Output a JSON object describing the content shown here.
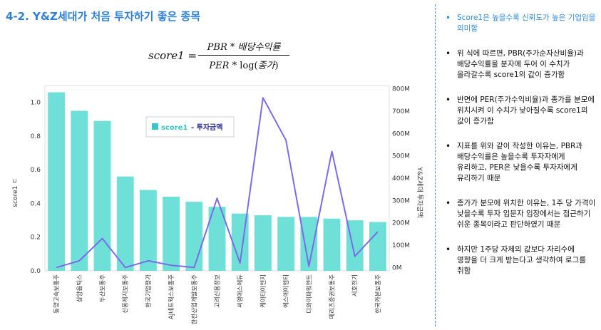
{
  "title": "4-2. Y&Z세대가 처음 투자하기 좋은 종목",
  "formula": {
    "lhs": "score1 =",
    "numerator": "PBR * 배당수익률",
    "denominator_prefix": "PER * ",
    "denominator_log": "log(",
    "denominator_arg": "종가",
    "denominator_suffix": ")"
  },
  "notes": [
    "Score1은 높을수록 신뢰도가 높은 기업임을 의미함",
    "위 식에 따르면, PBR(주가순자산비율)과 배당수익률을 분자에 두어 이 수치가 올라갈수록 score1의 값이 증가함",
    "반면에 PER(주가수익비율)과 종가를 분모에 위치시켜 이 수치가 낮아질수록 score1의 값이 증가함",
    "지표를 위와 같이 작성한 이유는, PBR과 배당수익률은 높을수록 투자자에게 유리하고, PER은 낮을수록 투자자에게 유리하기 때문",
    "종가가 분모에 위치한 이유는, 1주 당 가격이 낮을수록 투자 입문자 입장에서는 접근하기 쉬운 종목이라고 판단하였기 때문",
    "하지만 1주당 자체의 값보다 자리수에 영향을 더 크게 받는다고 생각하여 로그를 취함"
  ],
  "chart_data": {
    "type": "bar",
    "categories": [
      "동양고속보통주",
      "삼양옵틱스",
      "두산보통주",
      "신풍제지보통주",
      "한국기업평가",
      "AJ네트웍스보통주",
      "한전산업개발보통주",
      "고려신용정보",
      "씨엠에스에듀",
      "케이티이엔지",
      "에스에이엠티",
      "디와이파워엔트",
      "메리츠증권보통주",
      "서호전기",
      "한국카본보통주"
    ],
    "series": [
      {
        "name": "score1",
        "type": "bar",
        "axis": "left",
        "values": [
          1.06,
          0.95,
          0.89,
          0.56,
          0.48,
          0.44,
          0.41,
          0.38,
          0.34,
          0.33,
          0.32,
          0.32,
          0.31,
          0.3,
          0.29
        ]
      },
      {
        "name": "투자금액",
        "type": "line",
        "axis": "right",
        "values": [
          0,
          30,
          130,
          0,
          30,
          10,
          0,
          310,
          20,
          760,
          570,
          5,
          520,
          50,
          160
        ]
      }
    ],
    "ylabel": "score1 ㄷ",
    "y2label": "Y&Z세대 투자금액",
    "ylim": [
      0,
      1.1
    ],
    "y2lim": [
      -15,
      815
    ],
    "yticks": [
      "0.0",
      "0.2",
      "0.4",
      "0.6",
      "0.8",
      "1.0"
    ],
    "y2ticks": [
      "0M",
      "100M",
      "200M",
      "300M",
      "400M",
      "500M",
      "600M",
      "700M",
      "800M"
    ],
    "legend": "inside-top",
    "grid": false,
    "colors": {
      "bar": "#6ee0d8",
      "line": "#7b6ce6",
      "legend_text_bar": "#38c6c6",
      "legend_text_line": "#2a2f9a"
    }
  }
}
